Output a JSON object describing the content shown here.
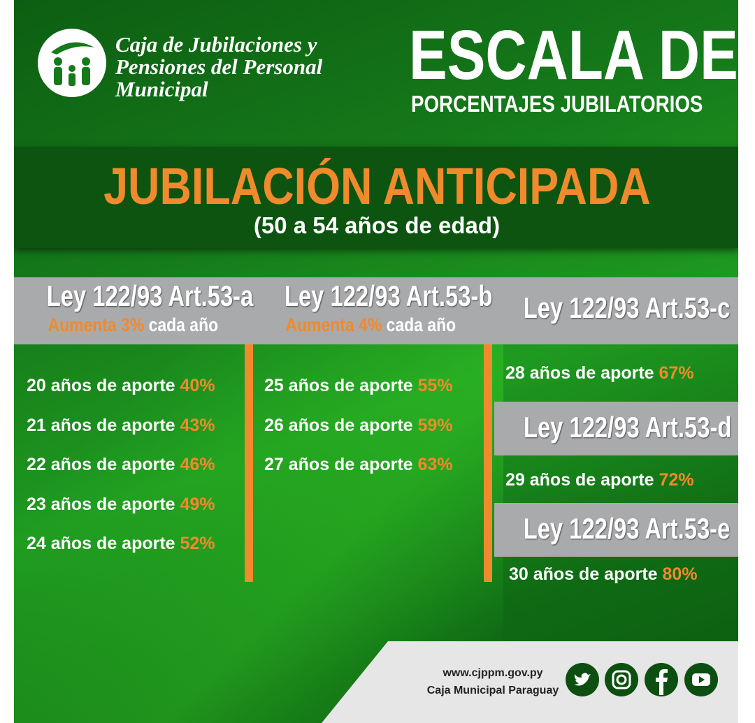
{
  "header": {
    "org_lines": [
      "Caja de Jubilaciones y",
      "Pensiones del Personal",
      "Municipal"
    ],
    "title": "ESCALA DE",
    "subtitle": "PORCENTAJES JUBILATORIOS"
  },
  "banner": {
    "title": "JUBILACIÓN ANTICIPADA",
    "subtitle": "(50 a 54 años de edad)"
  },
  "sections": [
    {
      "heading": "Ley 122/93 Art.53-a",
      "note": {
        "highlight": "Aumenta 3%",
        "rest": "cada año"
      },
      "rows": [
        {
          "text": "20 años de aporte",
          "pct": "40%"
        },
        {
          "text": "21 años de aporte",
          "pct": "43%"
        },
        {
          "text": "22 años de aporte",
          "pct": "46%"
        },
        {
          "text": "23 años de aporte",
          "pct": "49%"
        },
        {
          "text": "24 años de aporte",
          "pct": "52%"
        }
      ]
    },
    {
      "heading": "Ley 122/93 Art.53-b",
      "note": {
        "highlight": "Aumenta 4%",
        "rest": "cada año"
      },
      "rows": [
        {
          "text": "25 años de aporte",
          "pct": "55%"
        },
        {
          "text": "26 años de aporte",
          "pct": "59%"
        },
        {
          "text": "27 años de aporte",
          "pct": "63%"
        }
      ]
    },
    {
      "heading": "Ley 122/93 Art.53-c",
      "rows": [
        {
          "text": "28 años de aporte",
          "pct": "67%"
        }
      ]
    },
    {
      "heading": "Ley 122/93 Art.53-d",
      "rows": [
        {
          "text": "29 años de aporte",
          "pct": "72%"
        }
      ]
    },
    {
      "heading": "Ley 122/93 Art.53-e",
      "rows": [
        {
          "text": "30 años de aporte",
          "pct": "80%"
        }
      ]
    }
  ],
  "footer": {
    "website": "www.cjppm.gov.py",
    "name": "Caja Municipal Paraguay"
  }
}
